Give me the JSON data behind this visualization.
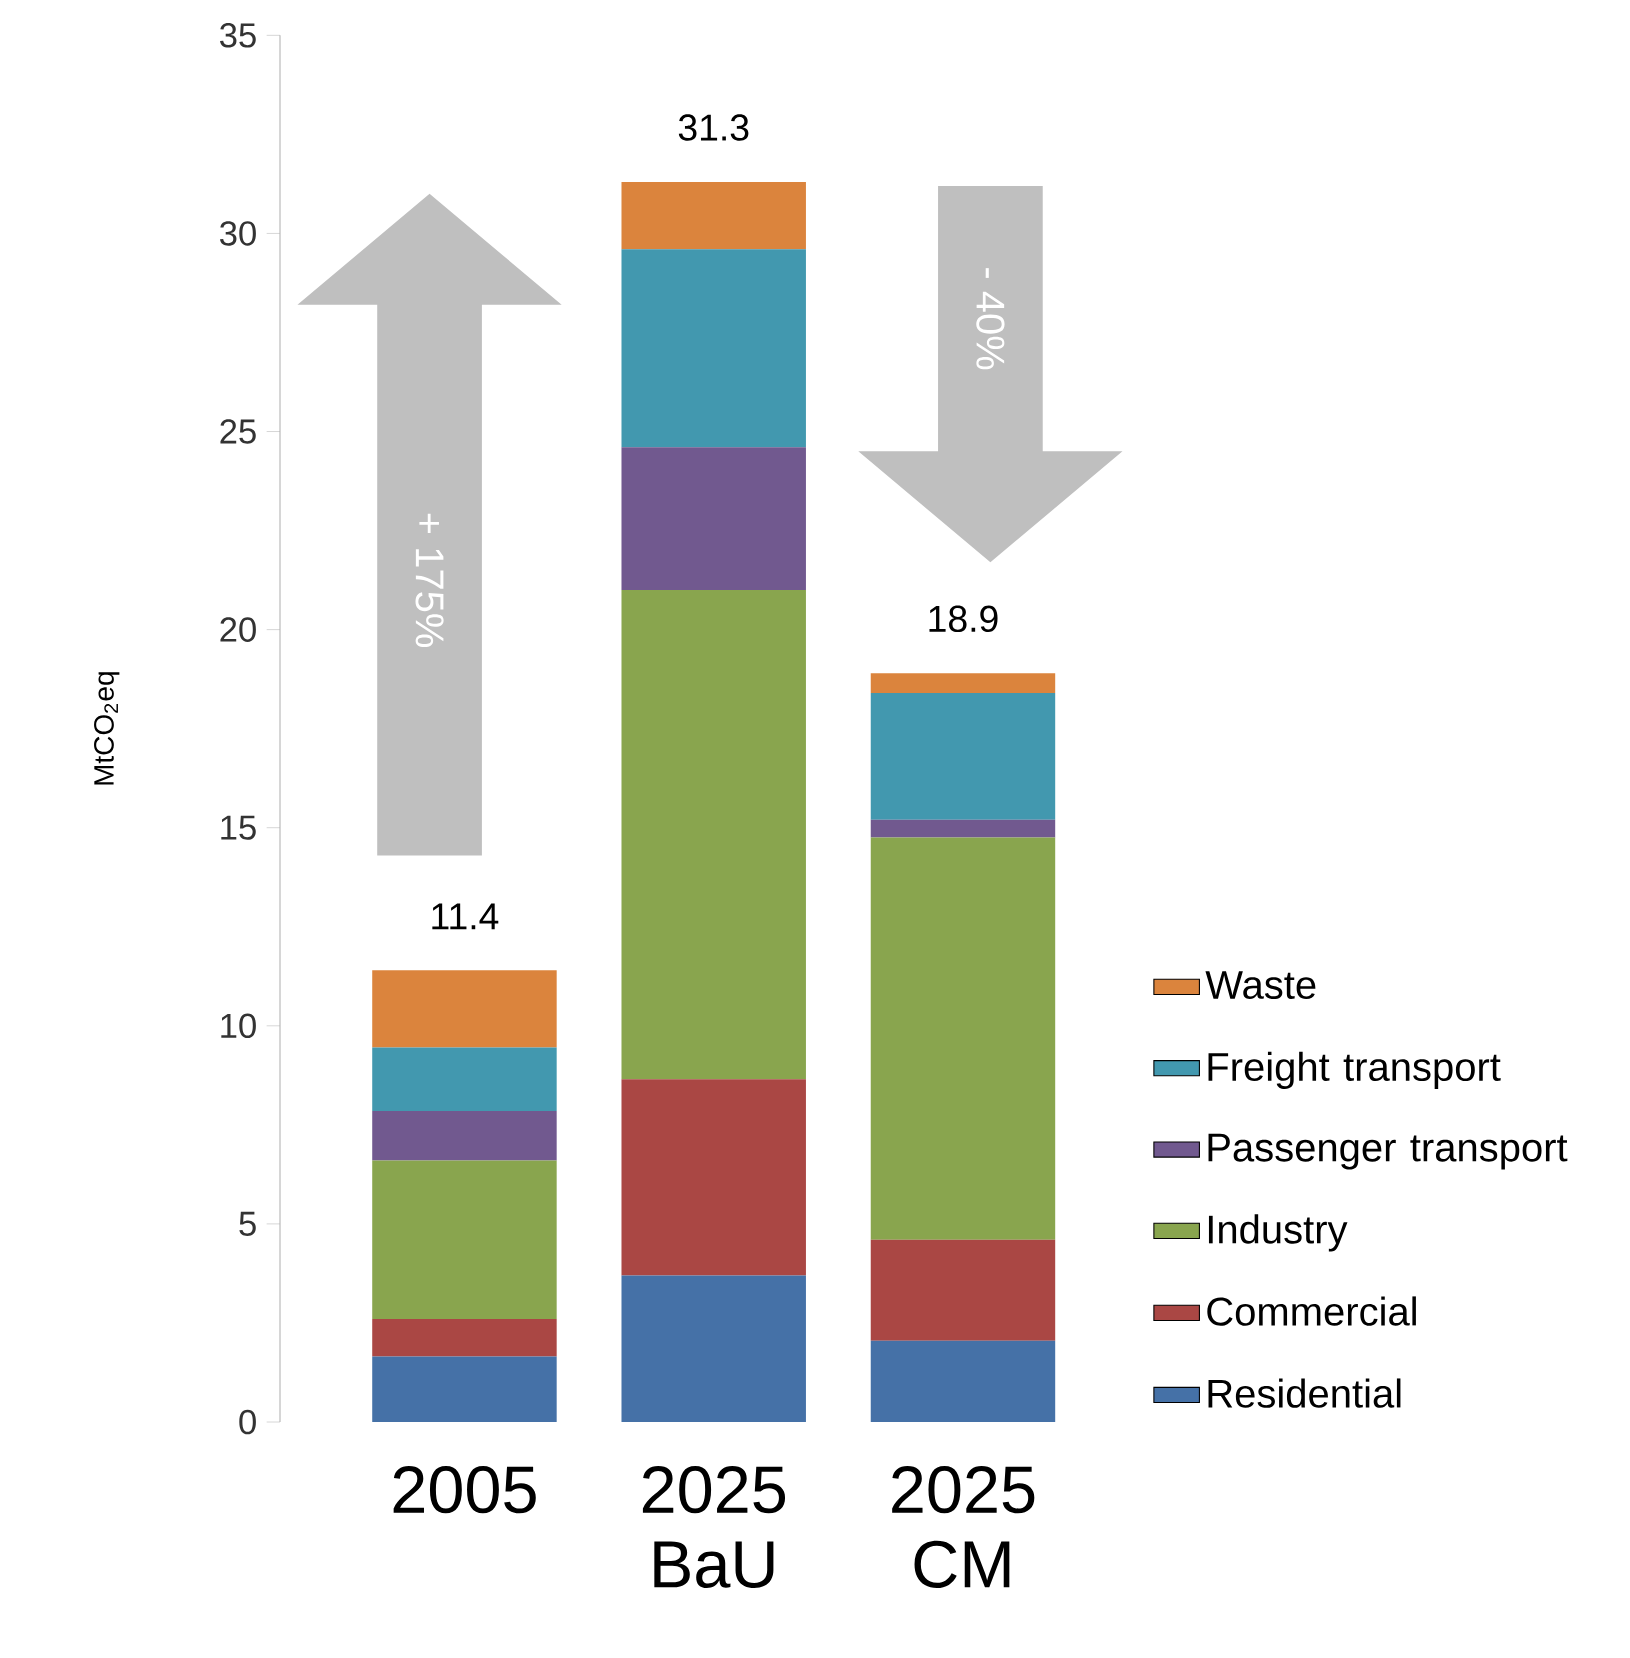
{
  "chart_data": {
    "type": "bar",
    "stacked": true,
    "ylabel": "MtCO$_{2}$eq",
    "categories": [
      "2005",
      "2025 BaU",
      "2025 CM"
    ],
    "series": [
      {
        "name": "Residential",
        "color": "#4571a7",
        "values": [
          1.65,
          3.7,
          2.05
        ]
      },
      {
        "name": "Commercial",
        "color": "#aa4744",
        "values": [
          0.95,
          4.95,
          2.55
        ]
      },
      {
        "name": "Industry",
        "color": "#89a54e",
        "values": [
          4.0,
          12.35,
          10.15
        ]
      },
      {
        "name": "Passenger transport",
        "color": "#71598f",
        "values": [
          1.25,
          3.6,
          0.45
        ]
      },
      {
        "name": "Freight transport",
        "color": "#4298af",
        "values": [
          1.6,
          5.0,
          3.2
        ]
      },
      {
        "name": "Waste",
        "color": "#db843d",
        "values": [
          1.95,
          1.7,
          0.5
        ]
      }
    ],
    "ylim": [
      0,
      35
    ],
    "yticks": [
      0,
      5,
      10,
      15,
      20,
      25,
      30,
      35
    ],
    "totals": [
      "11.4",
      "31.3",
      "18.9"
    ],
    "annotations": [
      "+ 175%",
      "- 40%"
    ],
    "legend": "right"
  }
}
